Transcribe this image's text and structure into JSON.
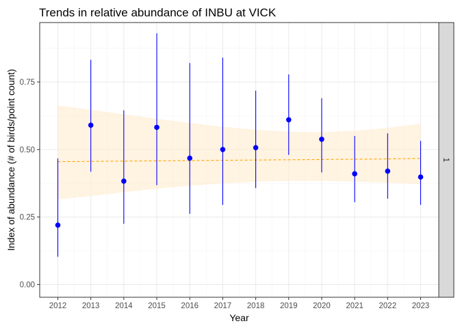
{
  "chart_data": {
    "type": "scatter",
    "title": "Trends in relative abundance of INBU at VICK",
    "xlabel": "Year",
    "ylabel": "Index of abundance (# of birds/point count)",
    "x": [
      2012,
      2013,
      2014,
      2015,
      2016,
      2017,
      2018,
      2019,
      2020,
      2021,
      2022,
      2023
    ],
    "x_tick_labels": [
      "2012",
      "2013",
      "2014",
      "2015",
      "2016",
      "2017",
      "2018",
      "2019",
      "2020",
      "2021",
      "2022",
      "2023"
    ],
    "y_ticks": [
      0.0,
      0.25,
      0.5,
      0.75
    ],
    "y_tick_labels": [
      "0.00",
      "0.25",
      "0.50",
      "0.75"
    ],
    "xlim": [
      2011.45,
      2023.55
    ],
    "ylim": [
      -0.047,
      0.97
    ],
    "grid": true,
    "facet_strip_label": "1",
    "facet_strip_position": "right",
    "series": [
      {
        "kind": "points-with-error-bars",
        "color": "#0000FF",
        "values": [
          0.22,
          0.59,
          0.383,
          0.582,
          0.468,
          0.5,
          0.507,
          0.61,
          0.538,
          0.41,
          0.42,
          0.398
        ],
        "lower": [
          0.103,
          0.418,
          0.225,
          0.368,
          0.262,
          0.295,
          0.357,
          0.48,
          0.415,
          0.305,
          0.318,
          0.295
        ],
        "upper": [
          0.467,
          0.832,
          0.645,
          0.93,
          0.82,
          0.84,
          0.718,
          0.778,
          0.69,
          0.55,
          0.56,
          0.532
        ]
      },
      {
        "kind": "trend-line",
        "color": "#FFA500",
        "line_style": "dashed",
        "values": [
          0.455,
          0.456,
          0.457,
          0.458,
          0.459,
          0.46,
          0.461,
          0.462,
          0.463,
          0.464,
          0.465,
          0.467
        ],
        "band_color": "#FFEBCD",
        "band_lower": [
          0.315,
          0.328,
          0.342,
          0.355,
          0.366,
          0.375,
          0.381,
          0.384,
          0.384,
          0.381,
          0.377,
          0.371
        ],
        "band_upper": [
          0.663,
          0.647,
          0.63,
          0.614,
          0.598,
          0.584,
          0.573,
          0.566,
          0.564,
          0.569,
          0.58,
          0.595
        ]
      }
    ]
  }
}
